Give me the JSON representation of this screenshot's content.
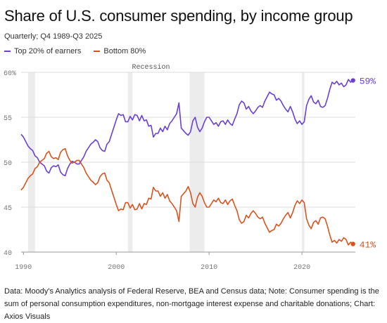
{
  "header": {
    "title": "Share of U.S. consumer spending, by income group",
    "subtitle": "Quarterly; Q4 1989-Q3 2025"
  },
  "footer": {
    "note": "Data: Moody's Analytics analysis of Federal Reserve, BEA and Census data; Note: Consumer spending is the sum of personal consumption expenditures, non-mortgage interest expense and charitable donations; Chart: Axios Visuals"
  },
  "chart_data": {
    "type": "line",
    "title": "Share of U.S. consumer spending, by income group",
    "subtitle": "Quarterly; Q4 1989-Q3 2025",
    "xlim": [
      1989.75,
      2025.75
    ],
    "ylim": [
      40,
      60
    ],
    "x_ticks": [
      1990,
      2000,
      2010,
      2020
    ],
    "y_ticks": [
      40,
      45,
      50,
      55,
      60
    ],
    "y_tick_labels": [
      "40",
      "45",
      "50",
      "55",
      "60%"
    ],
    "grid": "horizontal",
    "legend_position": "top-left",
    "recession_label": "Recession",
    "recessions": [
      [
        1990.5,
        1991.25
      ],
      [
        2001.25,
        2001.75
      ],
      [
        2007.9,
        2009.5
      ],
      [
        2020.0,
        2020.25
      ]
    ],
    "series": [
      {
        "name": "Top 20% of earners",
        "color": "#6a3fd4",
        "end_label": "59%",
        "points": [
          [
            1989.75,
            53.1
          ],
          [
            1990.0,
            52.8
          ],
          [
            1990.25,
            52.3
          ],
          [
            1990.5,
            51.8
          ],
          [
            1990.75,
            51.5
          ],
          [
            1991.0,
            51.3
          ],
          [
            1991.25,
            50.7
          ],
          [
            1991.5,
            50.5
          ],
          [
            1991.75,
            50.0
          ],
          [
            1992.0,
            49.8
          ],
          [
            1992.25,
            49.6
          ],
          [
            1992.5,
            49.0
          ],
          [
            1992.75,
            48.8
          ],
          [
            1993.0,
            49.4
          ],
          [
            1993.25,
            49.6
          ],
          [
            1993.5,
            49.5
          ],
          [
            1993.75,
            49.7
          ],
          [
            1994.0,
            48.9
          ],
          [
            1994.25,
            48.6
          ],
          [
            1994.5,
            48.5
          ],
          [
            1994.75,
            49.3
          ],
          [
            1995.0,
            49.8
          ],
          [
            1995.25,
            50.1
          ],
          [
            1995.5,
            50.0
          ],
          [
            1995.75,
            49.8
          ],
          [
            1996.0,
            49.8
          ],
          [
            1996.25,
            50.2
          ],
          [
            1996.5,
            50.6
          ],
          [
            1996.75,
            51.2
          ],
          [
            1997.0,
            51.6
          ],
          [
            1997.25,
            52.0
          ],
          [
            1997.5,
            52.2
          ],
          [
            1997.75,
            52.5
          ],
          [
            1998.0,
            52.3
          ],
          [
            1998.25,
            51.6
          ],
          [
            1998.5,
            51.3
          ],
          [
            1998.75,
            51.2
          ],
          [
            1999.0,
            52.0
          ],
          [
            1999.25,
            52.3
          ],
          [
            1999.5,
            53.1
          ],
          [
            1999.75,
            53.9
          ],
          [
            2000.0,
            54.7
          ],
          [
            2000.25,
            55.4
          ],
          [
            2000.5,
            55.2
          ],
          [
            2000.75,
            55.3
          ],
          [
            2001.0,
            54.5
          ],
          [
            2001.25,
            54.5
          ],
          [
            2001.5,
            55.1
          ],
          [
            2001.75,
            54.7
          ],
          [
            2002.0,
            55.3
          ],
          [
            2002.25,
            55.2
          ],
          [
            2002.5,
            54.6
          ],
          [
            2002.75,
            55.2
          ],
          [
            2003.0,
            54.6
          ],
          [
            2003.25,
            54.7
          ],
          [
            2003.5,
            54.0
          ],
          [
            2003.75,
            54.1
          ],
          [
            2004.0,
            52.8
          ],
          [
            2004.25,
            53.2
          ],
          [
            2004.5,
            53.2
          ],
          [
            2004.75,
            53.8
          ],
          [
            2005.0,
            53.4
          ],
          [
            2005.25,
            54.0
          ],
          [
            2005.5,
            53.6
          ],
          [
            2005.75,
            54.3
          ],
          [
            2006.0,
            54.6
          ],
          [
            2006.25,
            55.0
          ],
          [
            2006.5,
            55.4
          ],
          [
            2006.75,
            56.6
          ],
          [
            2007.0,
            53.8
          ],
          [
            2007.25,
            53.5
          ],
          [
            2007.5,
            53.2
          ],
          [
            2007.75,
            53.0
          ],
          [
            2008.0,
            53.4
          ],
          [
            2008.25,
            54.6
          ],
          [
            2008.5,
            55.0
          ],
          [
            2008.75,
            53.9
          ],
          [
            2009.0,
            53.4
          ],
          [
            2009.25,
            53.8
          ],
          [
            2009.5,
            54.5
          ],
          [
            2009.75,
            55.0
          ],
          [
            2010.0,
            55.0
          ],
          [
            2010.25,
            54.6
          ],
          [
            2010.5,
            54.2
          ],
          [
            2010.75,
            54.4
          ],
          [
            2011.0,
            54.0
          ],
          [
            2011.25,
            54.5
          ],
          [
            2011.5,
            54.6
          ],
          [
            2011.75,
            54.2
          ],
          [
            2012.0,
            54.7
          ],
          [
            2012.25,
            54.3
          ],
          [
            2012.5,
            54.1
          ],
          [
            2012.75,
            54.8
          ],
          [
            2013.0,
            55.4
          ],
          [
            2013.25,
            56.4
          ],
          [
            2013.5,
            56.8
          ],
          [
            2013.75,
            56.6
          ],
          [
            2014.0,
            55.9
          ],
          [
            2014.25,
            56.2
          ],
          [
            2014.5,
            55.7
          ],
          [
            2014.75,
            55.4
          ],
          [
            2015.0,
            55.7
          ],
          [
            2015.25,
            56.1
          ],
          [
            2015.5,
            56.3
          ],
          [
            2015.75,
            56.1
          ],
          [
            2016.0,
            56.8
          ],
          [
            2016.25,
            57.3
          ],
          [
            2016.5,
            57.8
          ],
          [
            2016.75,
            57.6
          ],
          [
            2017.0,
            57.5
          ],
          [
            2017.25,
            56.9
          ],
          [
            2017.5,
            57.1
          ],
          [
            2017.75,
            56.8
          ],
          [
            2018.0,
            56.3
          ],
          [
            2018.25,
            55.9
          ],
          [
            2018.5,
            55.6
          ],
          [
            2018.75,
            56.2
          ],
          [
            2019.0,
            55.6
          ],
          [
            2019.25,
            54.8
          ],
          [
            2019.5,
            54.3
          ],
          [
            2019.75,
            54.6
          ],
          [
            2020.0,
            54.2
          ],
          [
            2020.25,
            54.5
          ],
          [
            2020.5,
            56.3
          ],
          [
            2020.75,
            57.0
          ],
          [
            2021.0,
            57.4
          ],
          [
            2021.25,
            56.7
          ],
          [
            2021.5,
            56.5
          ],
          [
            2021.75,
            56.9
          ],
          [
            2022.0,
            56.2
          ],
          [
            2022.25,
            56.1
          ],
          [
            2022.5,
            56.3
          ],
          [
            2022.75,
            57.1
          ],
          [
            2023.0,
            58.1
          ],
          [
            2023.25,
            58.9
          ],
          [
            2023.5,
            58.7
          ],
          [
            2023.75,
            59.0
          ],
          [
            2024.0,
            58.6
          ],
          [
            2024.25,
            58.8
          ],
          [
            2024.5,
            58.4
          ],
          [
            2024.75,
            58.6
          ],
          [
            2025.0,
            59.2
          ],
          [
            2025.25,
            58.9
          ],
          [
            2025.5,
            59.1
          ]
        ]
      },
      {
        "name": "Bottom 80%",
        "color": "#d9531e",
        "end_label": "41%",
        "points": [
          [
            1989.75,
            46.9
          ],
          [
            1990.0,
            47.2
          ],
          [
            1990.25,
            47.7
          ],
          [
            1990.5,
            48.2
          ],
          [
            1990.75,
            48.5
          ],
          [
            1991.0,
            48.7
          ],
          [
            1991.25,
            49.3
          ],
          [
            1991.5,
            49.5
          ],
          [
            1991.75,
            50.0
          ],
          [
            1992.0,
            50.2
          ],
          [
            1992.25,
            50.4
          ],
          [
            1992.5,
            51.0
          ],
          [
            1992.75,
            51.2
          ],
          [
            1993.0,
            50.6
          ],
          [
            1993.25,
            50.4
          ],
          [
            1993.5,
            50.5
          ],
          [
            1993.75,
            50.3
          ],
          [
            1994.0,
            51.1
          ],
          [
            1994.25,
            51.4
          ],
          [
            1994.5,
            51.5
          ],
          [
            1994.75,
            50.7
          ],
          [
            1995.0,
            50.2
          ],
          [
            1995.25,
            49.9
          ],
          [
            1995.5,
            50.0
          ],
          [
            1995.75,
            50.2
          ],
          [
            1996.0,
            50.2
          ],
          [
            1996.25,
            49.8
          ],
          [
            1996.5,
            49.4
          ],
          [
            1996.75,
            48.8
          ],
          [
            1997.0,
            48.4
          ],
          [
            1997.25,
            48.0
          ],
          [
            1997.5,
            47.8
          ],
          [
            1997.75,
            47.5
          ],
          [
            1998.0,
            47.7
          ],
          [
            1998.25,
            48.4
          ],
          [
            1998.5,
            48.7
          ],
          [
            1998.75,
            48.8
          ],
          [
            1999.0,
            48.0
          ],
          [
            1999.25,
            47.7
          ],
          [
            1999.5,
            46.9
          ],
          [
            1999.75,
            46.1
          ],
          [
            2000.0,
            45.3
          ],
          [
            2000.25,
            44.6
          ],
          [
            2000.5,
            44.8
          ],
          [
            2000.75,
            44.7
          ],
          [
            2001.0,
            45.5
          ],
          [
            2001.25,
            45.5
          ],
          [
            2001.5,
            44.9
          ],
          [
            2001.75,
            45.3
          ],
          [
            2002.0,
            44.7
          ],
          [
            2002.25,
            44.8
          ],
          [
            2002.5,
            45.4
          ],
          [
            2002.75,
            44.8
          ],
          [
            2003.0,
            45.4
          ],
          [
            2003.25,
            45.3
          ],
          [
            2003.5,
            46.0
          ],
          [
            2003.75,
            45.9
          ],
          [
            2004.0,
            47.2
          ],
          [
            2004.25,
            46.8
          ],
          [
            2004.5,
            46.8
          ],
          [
            2004.75,
            46.2
          ],
          [
            2005.0,
            46.6
          ],
          [
            2005.25,
            46.0
          ],
          [
            2005.5,
            46.4
          ],
          [
            2005.75,
            45.7
          ],
          [
            2006.0,
            45.4
          ],
          [
            2006.25,
            45.0
          ],
          [
            2006.5,
            44.6
          ],
          [
            2006.75,
            43.4
          ],
          [
            2007.0,
            46.2
          ],
          [
            2007.25,
            46.5
          ],
          [
            2007.5,
            46.8
          ],
          [
            2007.75,
            47.3
          ],
          [
            2008.0,
            46.6
          ],
          [
            2008.25,
            45.4
          ],
          [
            2008.5,
            45.0
          ],
          [
            2008.75,
            46.1
          ],
          [
            2009.0,
            46.6
          ],
          [
            2009.25,
            46.2
          ],
          [
            2009.5,
            45.5
          ],
          [
            2009.75,
            45.0
          ],
          [
            2010.0,
            45.0
          ],
          [
            2010.25,
            45.4
          ],
          [
            2010.5,
            45.8
          ],
          [
            2010.75,
            45.6
          ],
          [
            2011.0,
            46.0
          ],
          [
            2011.25,
            45.5
          ],
          [
            2011.5,
            45.4
          ],
          [
            2011.75,
            45.8
          ],
          [
            2012.0,
            45.3
          ],
          [
            2012.25,
            45.7
          ],
          [
            2012.5,
            45.9
          ],
          [
            2012.75,
            45.2
          ],
          [
            2013.0,
            44.6
          ],
          [
            2013.25,
            43.6
          ],
          [
            2013.5,
            43.2
          ],
          [
            2013.75,
            43.4
          ],
          [
            2014.0,
            44.1
          ],
          [
            2014.25,
            43.8
          ],
          [
            2014.5,
            44.3
          ],
          [
            2014.75,
            44.6
          ],
          [
            2015.0,
            44.3
          ],
          [
            2015.25,
            43.9
          ],
          [
            2015.5,
            43.7
          ],
          [
            2015.75,
            43.9
          ],
          [
            2016.0,
            43.2
          ],
          [
            2016.25,
            42.7
          ],
          [
            2016.5,
            42.2
          ],
          [
            2016.75,
            42.4
          ],
          [
            2017.0,
            42.5
          ],
          [
            2017.25,
            43.1
          ],
          [
            2017.5,
            42.9
          ],
          [
            2017.75,
            43.2
          ],
          [
            2018.0,
            43.7
          ],
          [
            2018.25,
            44.1
          ],
          [
            2018.5,
            44.4
          ],
          [
            2018.75,
            43.8
          ],
          [
            2019.0,
            44.4
          ],
          [
            2019.25,
            45.2
          ],
          [
            2019.5,
            45.7
          ],
          [
            2019.75,
            45.4
          ],
          [
            2020.0,
            45.8
          ],
          [
            2020.25,
            45.5
          ],
          [
            2020.5,
            43.7
          ],
          [
            2020.75,
            43.0
          ],
          [
            2021.0,
            42.6
          ],
          [
            2021.25,
            43.3
          ],
          [
            2021.5,
            43.5
          ],
          [
            2021.75,
            43.1
          ],
          [
            2022.0,
            43.8
          ],
          [
            2022.25,
            43.9
          ],
          [
            2022.5,
            43.7
          ],
          [
            2022.75,
            42.9
          ],
          [
            2023.0,
            41.9
          ],
          [
            2023.25,
            41.1
          ],
          [
            2023.5,
            41.3
          ],
          [
            2023.75,
            41.0
          ],
          [
            2024.0,
            41.4
          ],
          [
            2024.25,
            41.2
          ],
          [
            2024.5,
            41.6
          ],
          [
            2024.75,
            41.4
          ],
          [
            2025.0,
            40.8
          ],
          [
            2025.25,
            41.1
          ],
          [
            2025.5,
            40.9
          ]
        ]
      }
    ]
  }
}
